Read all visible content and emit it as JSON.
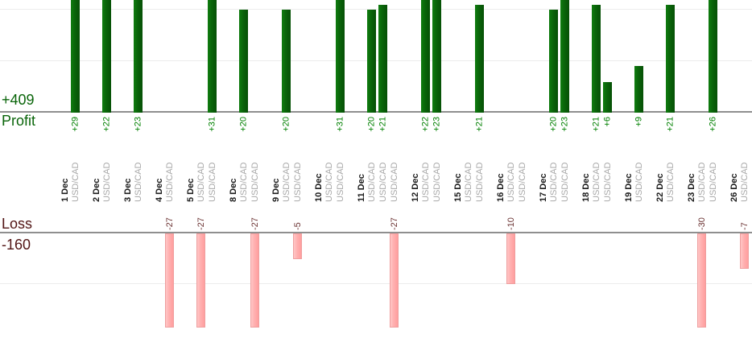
{
  "labels": {
    "profit_total": "+409",
    "profit_axis": "Profit",
    "loss_axis": "Loss",
    "loss_total": "-160"
  },
  "colors": {
    "profit_bar": "#0a640a",
    "profit_value_text": "#008000",
    "profit_summary_text": "#0a650a",
    "loss_bar": "#ffb0b0",
    "loss_bar_border": "#ef9f9f",
    "loss_value_text": "#6b3333",
    "loss_summary_text": "#511414",
    "date_text": "#1c1c1c",
    "symbol_text": "#a8a8a8",
    "axis_line": "#8f8f8f",
    "gridline": "#ececec"
  },
  "chart_data": {
    "type": "bar",
    "title": "",
    "description": "Per-trade profit and loss by day (December), split into Profit (top) and Loss (bottom) panels",
    "legend_position": "none",
    "grid": true,
    "top_panel": {
      "label": "Profit",
      "total": 409,
      "total_label": "+409",
      "gridline_values": [
        10,
        20
      ],
      "visible_range": [
        0,
        22
      ]
    },
    "bottom_panel": {
      "label": "Loss",
      "total": -160,
      "total_label": "-160",
      "gridline_values": [
        -10
      ],
      "visible_range": [
        0,
        -19
      ]
    },
    "groups": [
      {
        "date": "1 Dec",
        "trades": [
          {
            "symbol": "USD/CAD",
            "value": 29,
            "label": "+29"
          }
        ]
      },
      {
        "date": "2 Dec",
        "trades": [
          {
            "symbol": "USD/CAD",
            "value": 22,
            "label": "+22"
          }
        ]
      },
      {
        "date": "3 Dec",
        "trades": [
          {
            "symbol": "USD/CAD",
            "value": 23,
            "label": "+23"
          }
        ]
      },
      {
        "date": "4 Dec",
        "trades": [
          {
            "symbol": "USD/CAD",
            "value": -27,
            "label": "-27"
          }
        ]
      },
      {
        "date": "5 Dec",
        "trades": [
          {
            "symbol": "USD/CAD",
            "value": -27,
            "label": "-27"
          },
          {
            "symbol": "USD/CAD",
            "value": 31,
            "label": "+31"
          }
        ]
      },
      {
        "date": "8 Dec",
        "trades": [
          {
            "symbol": "USD/CAD",
            "value": 20,
            "label": "+20"
          },
          {
            "symbol": "USD/CAD",
            "value": -27,
            "label": "-27"
          }
        ]
      },
      {
        "date": "9 Dec",
        "trades": [
          {
            "symbol": "USD/CAD",
            "value": 20,
            "label": "+20"
          },
          {
            "symbol": "USD/CAD",
            "value": -5,
            "label": "-5"
          }
        ]
      },
      {
        "date": "10 Dec",
        "trades": [
          {
            "symbol": "USD/CAD",
            "value": 0,
            "label": ""
          },
          {
            "symbol": "USD/CAD",
            "value": 31,
            "label": "+31"
          }
        ]
      },
      {
        "date": "11 Dec",
        "trades": [
          {
            "symbol": "USD/CAD",
            "value": 20,
            "label": "+20"
          },
          {
            "symbol": "USD/CAD",
            "value": 21,
            "label": "+21"
          },
          {
            "symbol": "USD/CAD",
            "value": -27,
            "label": "-27"
          }
        ]
      },
      {
        "date": "12 Dec",
        "trades": [
          {
            "symbol": "USD/CAD",
            "value": 22,
            "label": "+22"
          },
          {
            "symbol": "USD/CAD",
            "value": 23,
            "label": "+23"
          }
        ]
      },
      {
        "date": "15 Dec",
        "trades": [
          {
            "symbol": "USD/CAD",
            "value": 0,
            "label": ""
          },
          {
            "symbol": "USD/CAD",
            "value": 21,
            "label": "+21"
          }
        ]
      },
      {
        "date": "16 Dec",
        "trades": [
          {
            "symbol": "USD/CAD",
            "value": -10,
            "label": "-10"
          },
          {
            "symbol": "USD/CAD",
            "value": 0,
            "label": ""
          }
        ]
      },
      {
        "date": "17 Dec",
        "trades": [
          {
            "symbol": "USD/CAD",
            "value": 20,
            "label": "+20"
          },
          {
            "symbol": "USD/CAD",
            "value": 23,
            "label": "+23"
          }
        ]
      },
      {
        "date": "18 Dec",
        "trades": [
          {
            "symbol": "USD/CAD",
            "value": 21,
            "label": "+21"
          },
          {
            "symbol": "USD/CAD",
            "value": 6,
            "label": "+6"
          }
        ]
      },
      {
        "date": "19 Dec",
        "trades": [
          {
            "symbol": "USD/CAD",
            "value": 9,
            "label": "+9"
          }
        ]
      },
      {
        "date": "22 Dec",
        "trades": [
          {
            "symbol": "USD/CAD",
            "value": 21,
            "label": "+21"
          }
        ]
      },
      {
        "date": "23 Dec",
        "trades": [
          {
            "symbol": "USD/CAD",
            "value": -30,
            "label": "-30"
          },
          {
            "symbol": "USD/CAD",
            "value": 26,
            "label": "+26"
          }
        ]
      },
      {
        "date": "26 Dec",
        "trades": [
          {
            "symbol": "USD/CAD",
            "value": -7,
            "label": "-7"
          }
        ]
      }
    ]
  }
}
